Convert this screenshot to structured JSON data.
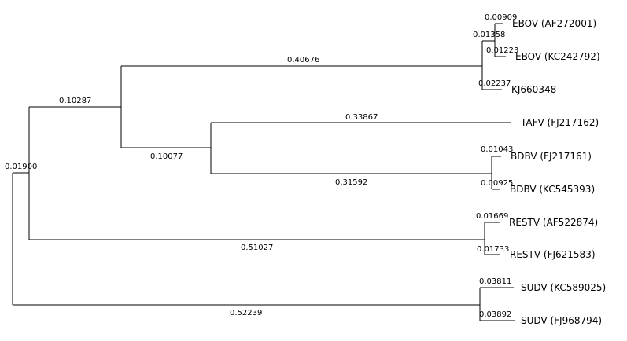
{
  "taxa": {
    "ebov_af": "EBOV (AF272001)",
    "ebov_kc": "EBOV (KC242792)",
    "kj": "KJ660348",
    "tafv": "TAFV (FJ217162)",
    "bdbv_fj": "BDBV (FJ217161)",
    "bdbv_kc": "BDBV (KC545393)",
    "restv_af": "RESTV (AF522874)",
    "restv_fj": "RESTV (FJ621583)",
    "sudv_kc": "SUDV (KC589025)",
    "sudv_fj": "SUDV (FJ968794)"
  },
  "branch_lengths": {
    "ebov_af": "0.00909",
    "ebov_pair": "0.01358",
    "ebov_kc": "0.01223",
    "kj": "0.02237",
    "ebov_clade": "0.40676",
    "ebov_taf_bd": "0.10287",
    "tafv": "0.33867",
    "bdbv_fj": "0.01043",
    "bdbv_kc": "0.00925",
    "bdbv_clade": "0.31592",
    "taf_bd": "0.10077",
    "root_upper": "0.01900",
    "restv_af": "0.01669",
    "restv_fj": "0.01733",
    "restv_clade": "0.51027",
    "sudv_kc": "0.03811",
    "sudv_fj": "0.03892",
    "sudv_clade": "0.52239"
  }
}
